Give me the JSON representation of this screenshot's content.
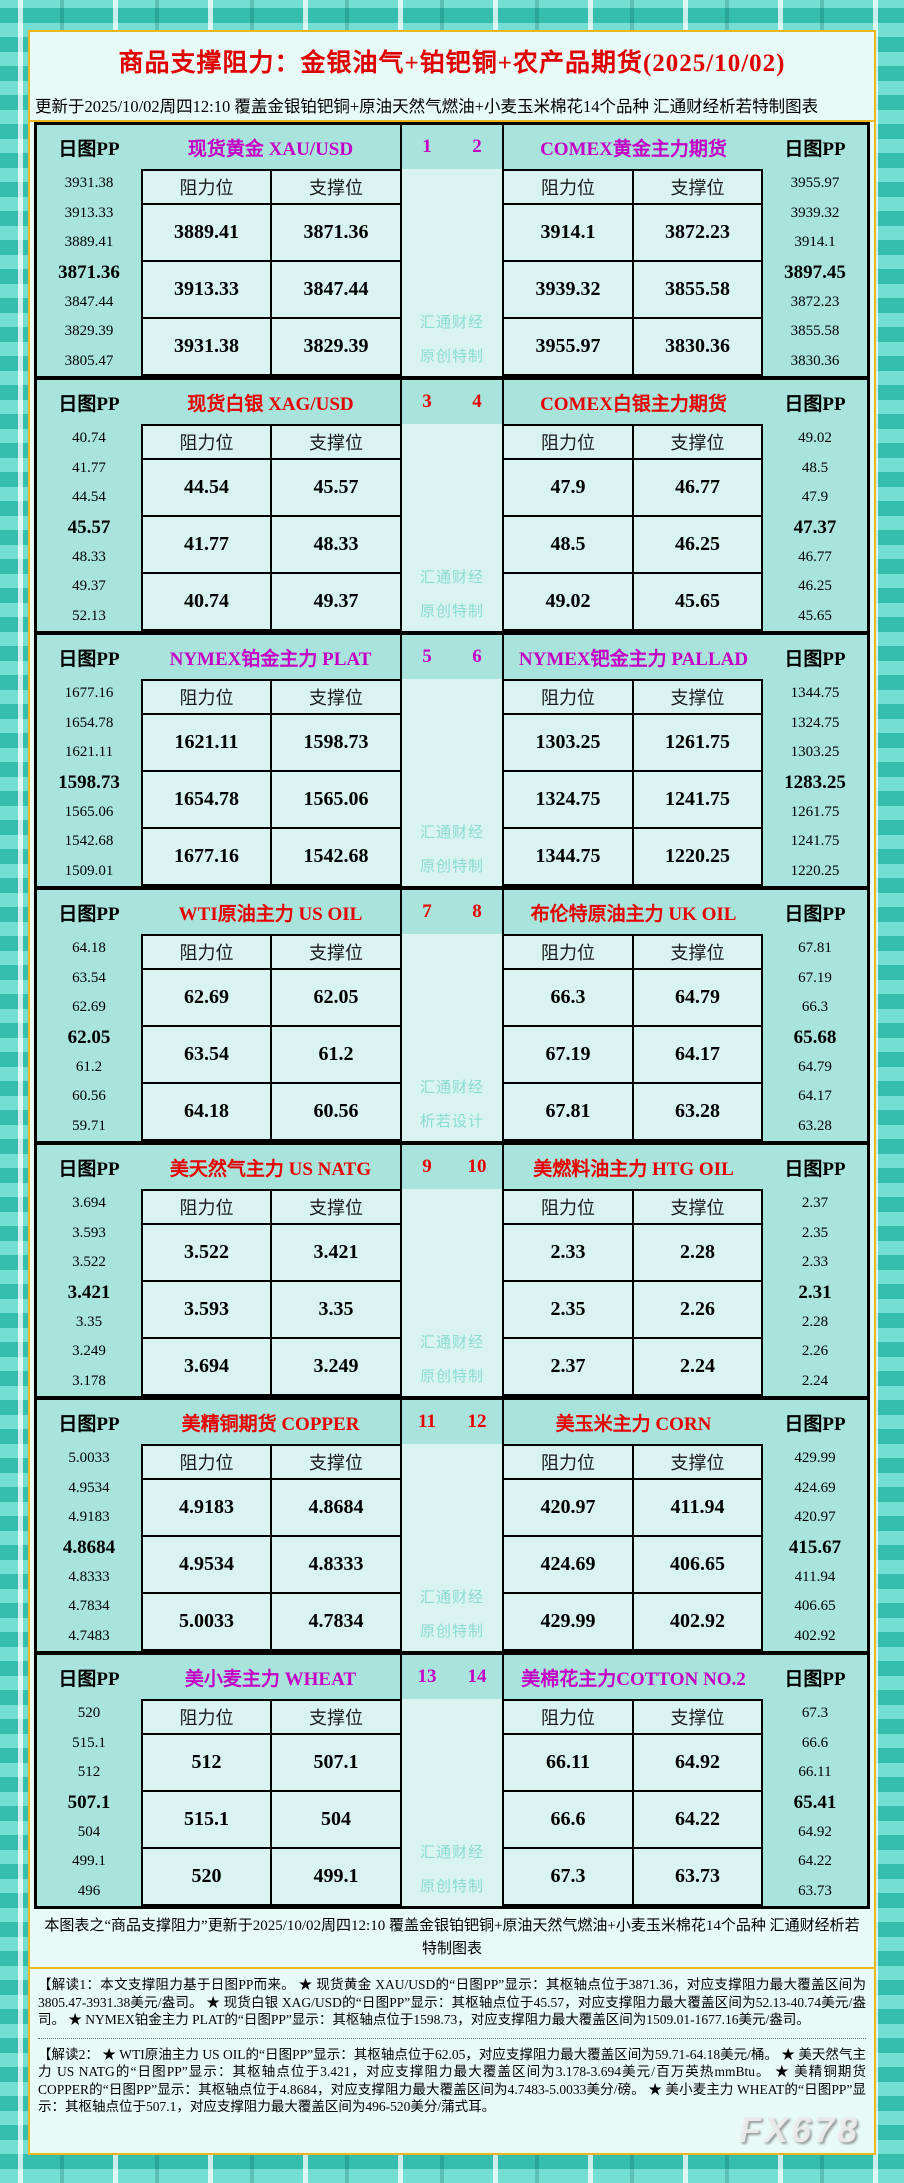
{
  "page": {
    "title": "商品支撑阻力：金银油气+铂钯铜+农产品期货(2025/10/02)",
    "subtitle": "更新于2025/10/02周四12:10 覆盖金银铂钯铜+原油天然气燃油+小麦玉米棉花14个品种 汇通财经析若特制图表",
    "brand_watermark": "FX678"
  },
  "labels": {
    "pp": "日图PP",
    "resistance": "阻力位",
    "support": "支撑位"
  },
  "colors": {
    "magenta_title": "#c400c4",
    "red_title": "#e60000",
    "page_title_red": "#e00000",
    "block_bg": "#a8e4dc",
    "cell_bg": "#d9f4f0",
    "gold_border": "#edb71e",
    "watermark_teal": "#8adbd0"
  },
  "chart_data": {
    "type": "table",
    "pivot_index": 3,
    "columns": [
      "阻力位",
      "支撑位"
    ],
    "blocks": [
      {
        "color": "magenta",
        "pair": [
          "1",
          "2"
        ],
        "watermark": [
          "汇通财经",
          "原创特制"
        ],
        "left": {
          "title": "现货黄金 XAU/USD",
          "pp": [
            "3931.38",
            "3913.33",
            "3889.41",
            "3871.36",
            "3847.44",
            "3829.39",
            "3805.47"
          ],
          "rows": [
            [
              "3889.41",
              "3871.36"
            ],
            [
              "3913.33",
              "3847.44"
            ],
            [
              "3931.38",
              "3829.39"
            ]
          ]
        },
        "right": {
          "title": "COMEX黄金主力期货",
          "pp": [
            "3955.97",
            "3939.32",
            "3914.1",
            "3897.45",
            "3872.23",
            "3855.58",
            "3830.36"
          ],
          "rows": [
            [
              "3914.1",
              "3872.23"
            ],
            [
              "3939.32",
              "3855.58"
            ],
            [
              "3955.97",
              "3830.36"
            ]
          ]
        }
      },
      {
        "color": "red",
        "pair": [
          "3",
          "4"
        ],
        "watermark": [
          "汇通财经",
          "原创特制"
        ],
        "left": {
          "title": "现货白银 XAG/USD",
          "pp": [
            "40.74",
            "41.77",
            "44.54",
            "45.57",
            "48.33",
            "49.37",
            "52.13"
          ],
          "rows": [
            [
              "44.54",
              "45.57"
            ],
            [
              "41.77",
              "48.33"
            ],
            [
              "40.74",
              "49.37"
            ]
          ]
        },
        "right": {
          "title": "COMEX白银主力期货",
          "pp": [
            "49.02",
            "48.5",
            "47.9",
            "47.37",
            "46.77",
            "46.25",
            "45.65"
          ],
          "rows": [
            [
              "47.9",
              "46.77"
            ],
            [
              "48.5",
              "46.25"
            ],
            [
              "49.02",
              "45.65"
            ]
          ]
        }
      },
      {
        "color": "magenta",
        "pair": [
          "5",
          "6"
        ],
        "watermark": [
          "汇通财经",
          "原创特制"
        ],
        "left": {
          "title": "NYMEX铂金主力 PLAT",
          "pp": [
            "1677.16",
            "1654.78",
            "1621.11",
            "1598.73",
            "1565.06",
            "1542.68",
            "1509.01"
          ],
          "rows": [
            [
              "1621.11",
              "1598.73"
            ],
            [
              "1654.78",
              "1565.06"
            ],
            [
              "1677.16",
              "1542.68"
            ]
          ]
        },
        "right": {
          "title": "NYMEX钯金主力 PALLAD",
          "pp": [
            "1344.75",
            "1324.75",
            "1303.25",
            "1283.25",
            "1261.75",
            "1241.75",
            "1220.25"
          ],
          "rows": [
            [
              "1303.25",
              "1261.75"
            ],
            [
              "1324.75",
              "1241.75"
            ],
            [
              "1344.75",
              "1220.25"
            ]
          ]
        }
      },
      {
        "color": "red",
        "pair": [
          "7",
          "8"
        ],
        "watermark": [
          "汇通财经",
          "析若设计"
        ],
        "left": {
          "title": "WTI原油主力 US OIL",
          "pp": [
            "64.18",
            "63.54",
            "62.69",
            "62.05",
            "61.2",
            "60.56",
            "59.71"
          ],
          "rows": [
            [
              "62.69",
              "62.05"
            ],
            [
              "63.54",
              "61.2"
            ],
            [
              "64.18",
              "60.56"
            ]
          ]
        },
        "right": {
          "title": "布伦特原油主力 UK OIL",
          "pp": [
            "67.81",
            "67.19",
            "66.3",
            "65.68",
            "64.79",
            "64.17",
            "63.28"
          ],
          "rows": [
            [
              "66.3",
              "64.79"
            ],
            [
              "67.19",
              "64.17"
            ],
            [
              "67.81",
              "63.28"
            ]
          ]
        }
      },
      {
        "color": "red",
        "pair": [
          "9",
          "10"
        ],
        "watermark": [
          "汇通财经",
          "原创特制"
        ],
        "left": {
          "title": "美天然气主力 US NATG",
          "pp": [
            "3.694",
            "3.593",
            "3.522",
            "3.421",
            "3.35",
            "3.249",
            "3.178"
          ],
          "rows": [
            [
              "3.522",
              "3.421"
            ],
            [
              "3.593",
              "3.35"
            ],
            [
              "3.694",
              "3.249"
            ]
          ]
        },
        "right": {
          "title": "美燃料油主力 HTG OIL",
          "pp": [
            "2.37",
            "2.35",
            "2.33",
            "2.31",
            "2.28",
            "2.26",
            "2.24"
          ],
          "rows": [
            [
              "2.33",
              "2.28"
            ],
            [
              "2.35",
              "2.26"
            ],
            [
              "2.37",
              "2.24"
            ]
          ]
        }
      },
      {
        "color": "red",
        "pair": [
          "11",
          "12"
        ],
        "watermark": [
          "汇通财经",
          "原创特制"
        ],
        "left": {
          "title": "美精铜期货 COPPER",
          "pp": [
            "5.0033",
            "4.9534",
            "4.9183",
            "4.8684",
            "4.8333",
            "4.7834",
            "4.7483"
          ],
          "rows": [
            [
              "4.9183",
              "4.8684"
            ],
            [
              "4.9534",
              "4.8333"
            ],
            [
              "5.0033",
              "4.7834"
            ]
          ]
        },
        "right": {
          "title": "美玉米主力 CORN",
          "pp": [
            "429.99",
            "424.69",
            "420.97",
            "415.67",
            "411.94",
            "406.65",
            "402.92"
          ],
          "rows": [
            [
              "420.97",
              "411.94"
            ],
            [
              "424.69",
              "406.65"
            ],
            [
              "429.99",
              "402.92"
            ]
          ]
        }
      },
      {
        "color": "magenta",
        "pair": [
          "13",
          "14"
        ],
        "watermark": [
          "汇通财经",
          "原创特制"
        ],
        "left": {
          "title": "美小麦主力 WHEAT",
          "pp": [
            "520",
            "515.1",
            "512",
            "507.1",
            "504",
            "499.1",
            "496"
          ],
          "rows": [
            [
              "512",
              "507.1"
            ],
            [
              "515.1",
              "504"
            ],
            [
              "520",
              "499.1"
            ]
          ]
        },
        "right": {
          "title": "美棉花主力COTTON NO.2",
          "pp": [
            "67.3",
            "66.6",
            "66.11",
            "65.41",
            "64.92",
            "64.22",
            "63.73"
          ],
          "rows": [
            [
              "66.11",
              "64.92"
            ],
            [
              "66.6",
              "64.22"
            ],
            [
              "67.3",
              "63.73"
            ]
          ]
        }
      }
    ]
  },
  "footer": {
    "note": "本图表之“商品支撑阻力”更新于2025/10/02周四12:10 覆盖金银铂钯铜+原油天然气燃油+小麦玉米棉花14个品种 汇通财经析若特制图表",
    "interpretation1": "【解读1：本文支撑阻力基于日图PP而来。 ★ 现货黄金 XAU/USD的“日图PP”显示：其枢轴点位于3871.36，对应支撑阻力最大覆盖区间为3805.47-3931.38美元/盎司。 ★ 现货白银 XAG/USD的“日图PP”显示：其枢轴点位于45.57，对应支撑阻力最大覆盖区间为52.13-40.74美元/盎司。 ★ NYMEX铂金主力 PLAT的“日图PP”显示：其枢轴点位于1598.73，对应支撑阻力最大覆盖区间为1509.01-1677.16美元/盎司。",
    "interpretation2": "【解读2： ★ WTI原油主力 US OIL的“日图PP”显示：其枢轴点位于62.05，对应支撑阻力最大覆盖区间为59.71-64.18美元/桶。 ★ 美天然气主力 US NATG的“日图PP”显示：其枢轴点位于3.421，对应支撑阻力最大覆盖区间为3.178-3.694美元/百万英热mmBtu。 ★ 美精铜期货 COPPER的“日图PP”显示：其枢轴点位于4.8684，对应支撑阻力最大覆盖区间为4.7483-5.0033美分/磅。 ★ 美小麦主力 WHEAT的“日图PP”显示：其枢轴点位于507.1，对应支撑阻力最大覆盖区间为496-520美分/蒲式耳。"
  }
}
